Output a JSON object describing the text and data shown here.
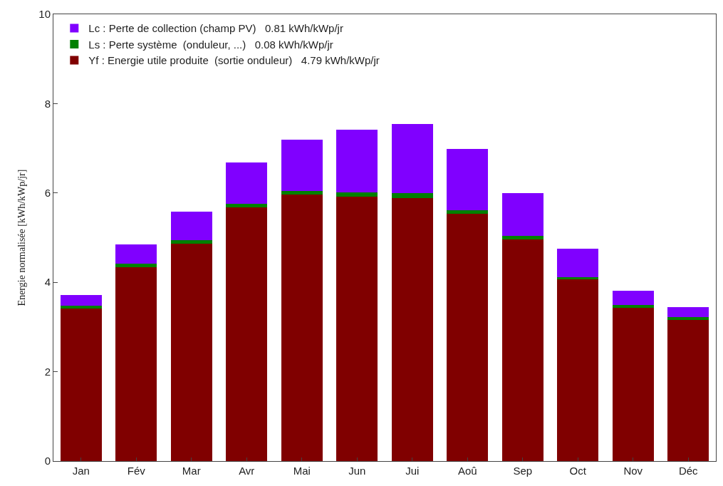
{
  "chart_data": {
    "type": "bar",
    "stacked": true,
    "ylabel": "Energie normalisée [kWh/kWp/jr]",
    "categories": [
      "Jan",
      "Fév",
      "Mar",
      "Avr",
      "Mai",
      "Jun",
      "Jui",
      "Aoû",
      "Sep",
      "Oct",
      "Nov",
      "Déc"
    ],
    "series": [
      {
        "name": "Yf : Energie utile produite  (sortie onduleur)   4.79 kWh/kWp/jr",
        "color": "#800000",
        "values": [
          3.41,
          4.34,
          4.87,
          5.67,
          5.96,
          5.92,
          5.89,
          5.53,
          4.96,
          4.06,
          3.43,
          3.16
        ]
      },
      {
        "name": "Ls : Perte système  (onduleur, ...)   0.08 kWh/kWp/jr",
        "color": "#008000",
        "values": [
          0.07,
          0.07,
          0.07,
          0.08,
          0.09,
          0.1,
          0.1,
          0.08,
          0.08,
          0.06,
          0.06,
          0.06
        ]
      },
      {
        "name": "Lc : Perte de collection (champ PV)   0.81 kWh/kWp/jr",
        "color": "#8000ff",
        "values": [
          0.23,
          0.44,
          0.64,
          0.93,
          1.15,
          1.39,
          1.56,
          1.37,
          0.96,
          0.64,
          0.32,
          0.22
        ]
      }
    ],
    "ylim": [
      0,
      10
    ],
    "yticks": [
      0,
      2,
      4,
      6,
      8,
      10
    ],
    "legend": "top left"
  }
}
